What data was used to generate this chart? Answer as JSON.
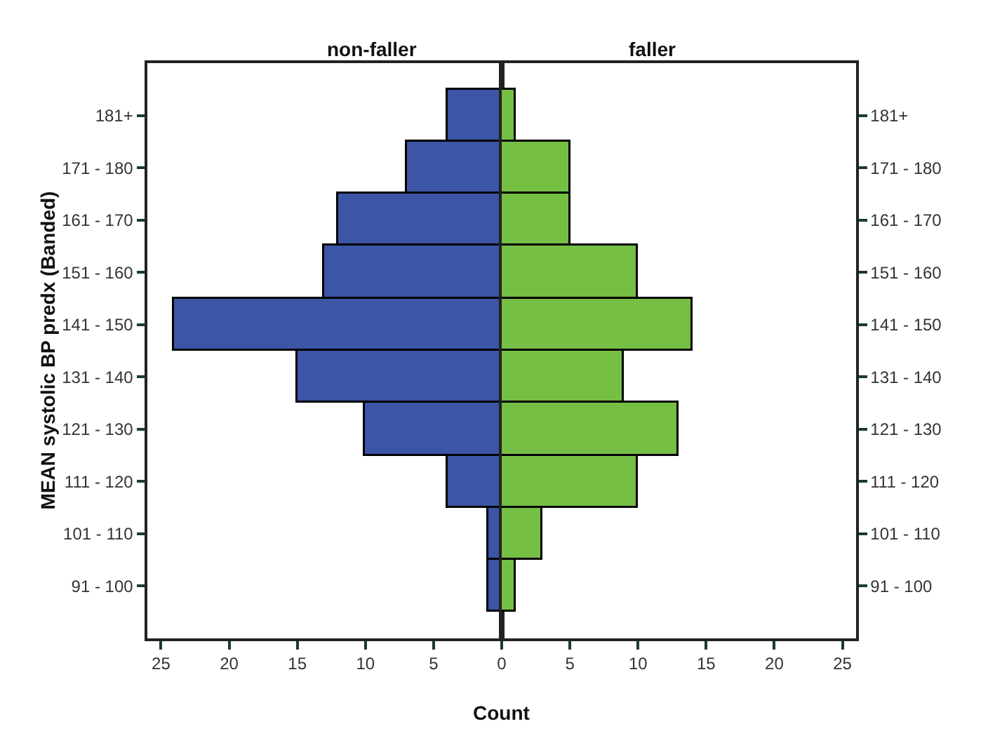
{
  "chart_data": [
    {
      "type": "bar",
      "orientation": "horizontal",
      "title": "non-faller",
      "xlabel": "Count",
      "ylabel": "MEAN systolic BP predx (Banded)",
      "categories": [
        "181+",
        "171 - 180",
        "161 - 170",
        "151 - 160",
        "141 - 150",
        "131 - 140",
        "121 - 130",
        "111 - 120",
        "101 - 110",
        "91 - 100"
      ],
      "series": [
        {
          "color": "#3c55a5",
          "values": [
            4,
            7,
            12,
            13,
            24,
            15,
            10,
            4,
            1,
            1
          ]
        }
      ],
      "xlim": [
        26,
        0
      ],
      "xticks": [
        25,
        20,
        15,
        10,
        5,
        0
      ],
      "legend": false
    },
    {
      "type": "bar",
      "orientation": "horizontal",
      "title": "faller",
      "categories": [
        "181+",
        "171 - 180",
        "161 - 170",
        "151 - 160",
        "141 - 150",
        "131 - 140",
        "121 - 130",
        "111 - 120",
        "101 - 110",
        "91 - 100"
      ],
      "series": [
        {
          "color": "#76bf45",
          "values": [
            1,
            5,
            5,
            10,
            14,
            9,
            13,
            10,
            3,
            1
          ]
        }
      ],
      "xlim": [
        0,
        26
      ],
      "xticks": [
        {
          "value": 0,
          "label": null
        },
        5,
        10,
        15,
        20,
        25
      ],
      "legend": false
    }
  ]
}
